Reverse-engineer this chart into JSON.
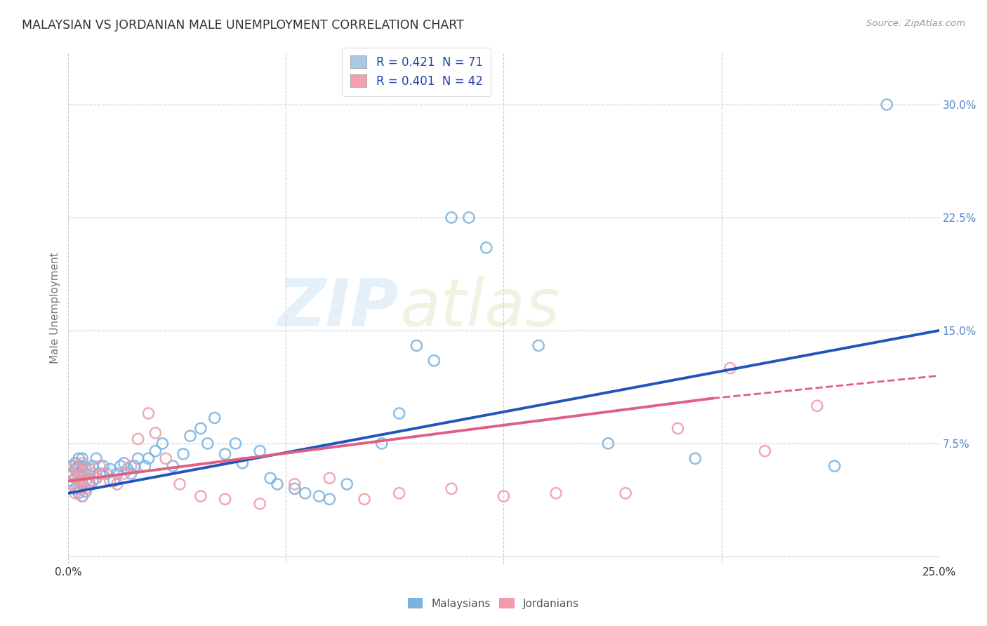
{
  "title": "MALAYSIAN VS JORDANIAN MALE UNEMPLOYMENT CORRELATION CHART",
  "source": "Source: ZipAtlas.com",
  "ylabel": "Male Unemployment",
  "xlim": [
    0.0,
    0.25
  ],
  "ylim": [
    -0.005,
    0.335
  ],
  "ytick_vals": [
    0.0,
    0.075,
    0.15,
    0.225,
    0.3
  ],
  "ytick_labels": [
    "",
    "7.5%",
    "15.0%",
    "22.5%",
    "30.0%"
  ],
  "xtick_vals": [
    0.0,
    0.0625,
    0.125,
    0.1875,
    0.25
  ],
  "xtick_labels": [
    "0.0%",
    "",
    "",
    "",
    "25.0%"
  ],
  "watermark_zip": "ZIP",
  "watermark_atlas": "atlas",
  "blue_scatter_color": "#7ab3e0",
  "pink_scatter_color": "#f09aaa",
  "blue_line_color": "#2255bb",
  "pink_line_color": "#e06080",
  "legend_box_color": "#aac8e8",
  "legend_pink_color": "#f4a0b0",
  "legend_text_color": "#2244aa",
  "legend_label1": "R = 0.421  N = 71",
  "legend_label2": "R = 0.401  N = 42",
  "bottom_legend_color": "#666666",
  "blue_line_start_y": 0.042,
  "blue_line_end_y": 0.15,
  "pink_line_start_y": 0.05,
  "pink_line_solid_end_x": 0.185,
  "pink_line_end_y_solid": 0.105,
  "pink_line_end_y_dash": 0.12,
  "malaysians_x": [
    0.001,
    0.001,
    0.001,
    0.002,
    0.002,
    0.002,
    0.002,
    0.003,
    0.003,
    0.003,
    0.003,
    0.003,
    0.004,
    0.004,
    0.004,
    0.004,
    0.004,
    0.005,
    0.005,
    0.005,
    0.006,
    0.006,
    0.007,
    0.007,
    0.008,
    0.008,
    0.009,
    0.01,
    0.011,
    0.012,
    0.013,
    0.014,
    0.015,
    0.016,
    0.017,
    0.018,
    0.019,
    0.02,
    0.022,
    0.023,
    0.025,
    0.027,
    0.03,
    0.033,
    0.035,
    0.038,
    0.04,
    0.042,
    0.045,
    0.048,
    0.05,
    0.055,
    0.058,
    0.06,
    0.065,
    0.068,
    0.072,
    0.075,
    0.08,
    0.09,
    0.095,
    0.1,
    0.105,
    0.11,
    0.115,
    0.12,
    0.135,
    0.155,
    0.18,
    0.22,
    0.235
  ],
  "malaysians_y": [
    0.05,
    0.055,
    0.06,
    0.045,
    0.052,
    0.058,
    0.062,
    0.042,
    0.05,
    0.055,
    0.06,
    0.065,
    0.04,
    0.048,
    0.055,
    0.06,
    0.065,
    0.043,
    0.05,
    0.058,
    0.048,
    0.058,
    0.05,
    0.06,
    0.052,
    0.065,
    0.055,
    0.06,
    0.055,
    0.058,
    0.05,
    0.055,
    0.06,
    0.062,
    0.058,
    0.055,
    0.06,
    0.065,
    0.06,
    0.065,
    0.07,
    0.075,
    0.06,
    0.068,
    0.08,
    0.085,
    0.075,
    0.092,
    0.068,
    0.075,
    0.062,
    0.07,
    0.052,
    0.048,
    0.045,
    0.042,
    0.04,
    0.038,
    0.048,
    0.075,
    0.095,
    0.14,
    0.13,
    0.225,
    0.225,
    0.205,
    0.14,
    0.075,
    0.065,
    0.06,
    0.3
  ],
  "jordanians_x": [
    0.001,
    0.001,
    0.002,
    0.002,
    0.002,
    0.003,
    0.003,
    0.003,
    0.004,
    0.004,
    0.004,
    0.005,
    0.005,
    0.006,
    0.007,
    0.008,
    0.009,
    0.01,
    0.012,
    0.014,
    0.016,
    0.018,
    0.02,
    0.023,
    0.025,
    0.028,
    0.032,
    0.038,
    0.045,
    0.055,
    0.065,
    0.075,
    0.085,
    0.095,
    0.11,
    0.125,
    0.14,
    0.16,
    0.175,
    0.19,
    0.2,
    0.215
  ],
  "jordanians_y": [
    0.048,
    0.055,
    0.042,
    0.052,
    0.06,
    0.045,
    0.052,
    0.058,
    0.04,
    0.05,
    0.062,
    0.045,
    0.058,
    0.05,
    0.055,
    0.052,
    0.06,
    0.055,
    0.05,
    0.048,
    0.055,
    0.06,
    0.078,
    0.095,
    0.082,
    0.065,
    0.048,
    0.04,
    0.038,
    0.035,
    0.048,
    0.052,
    0.038,
    0.042,
    0.045,
    0.04,
    0.042,
    0.042,
    0.085,
    0.125,
    0.07,
    0.1
  ]
}
